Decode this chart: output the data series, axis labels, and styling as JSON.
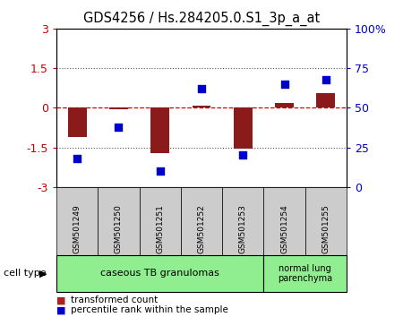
{
  "title": "GDS4256 / Hs.284205.0.S1_3p_a_at",
  "samples": [
    "GSM501249",
    "GSM501250",
    "GSM501251",
    "GSM501252",
    "GSM501253",
    "GSM501254",
    "GSM501255"
  ],
  "transformed_count": [
    -1.1,
    -0.05,
    -1.7,
    0.07,
    -1.55,
    0.18,
    0.55
  ],
  "percentile_rank": [
    18,
    38,
    10,
    62,
    20,
    65,
    68
  ],
  "ylim_left": [
    -3,
    3
  ],
  "ylim_right": [
    0,
    100
  ],
  "yticks_left": [
    -3,
    -1.5,
    0,
    1.5,
    3
  ],
  "yticks_right": [
    0,
    25,
    50,
    75,
    100
  ],
  "ytick_labels_left": [
    "-3",
    "-1.5",
    "0",
    "1.5",
    "3"
  ],
  "ytick_labels_right": [
    "0",
    "25",
    "50",
    "75",
    "100%"
  ],
  "bar_color": "#8B1A1A",
  "dot_color": "#0000CC",
  "zero_line_color": "#CC0000",
  "dotted_line_color": "#555555",
  "cell_type_groups": [
    {
      "label": "caseous TB granulomas",
      "span": [
        0,
        4
      ],
      "color": "#90EE90"
    },
    {
      "label": "normal lung\nparenchyma",
      "span": [
        5,
        6
      ],
      "color": "#90EE90"
    }
  ],
  "legend_items": [
    {
      "label": "transformed count",
      "color": "#AA2222"
    },
    {
      "label": "percentile rank within the sample",
      "color": "#0000CC"
    }
  ],
  "cell_type_label": "cell type",
  "background_color": "#ffffff",
  "bar_width": 0.45,
  "dot_size": 35
}
